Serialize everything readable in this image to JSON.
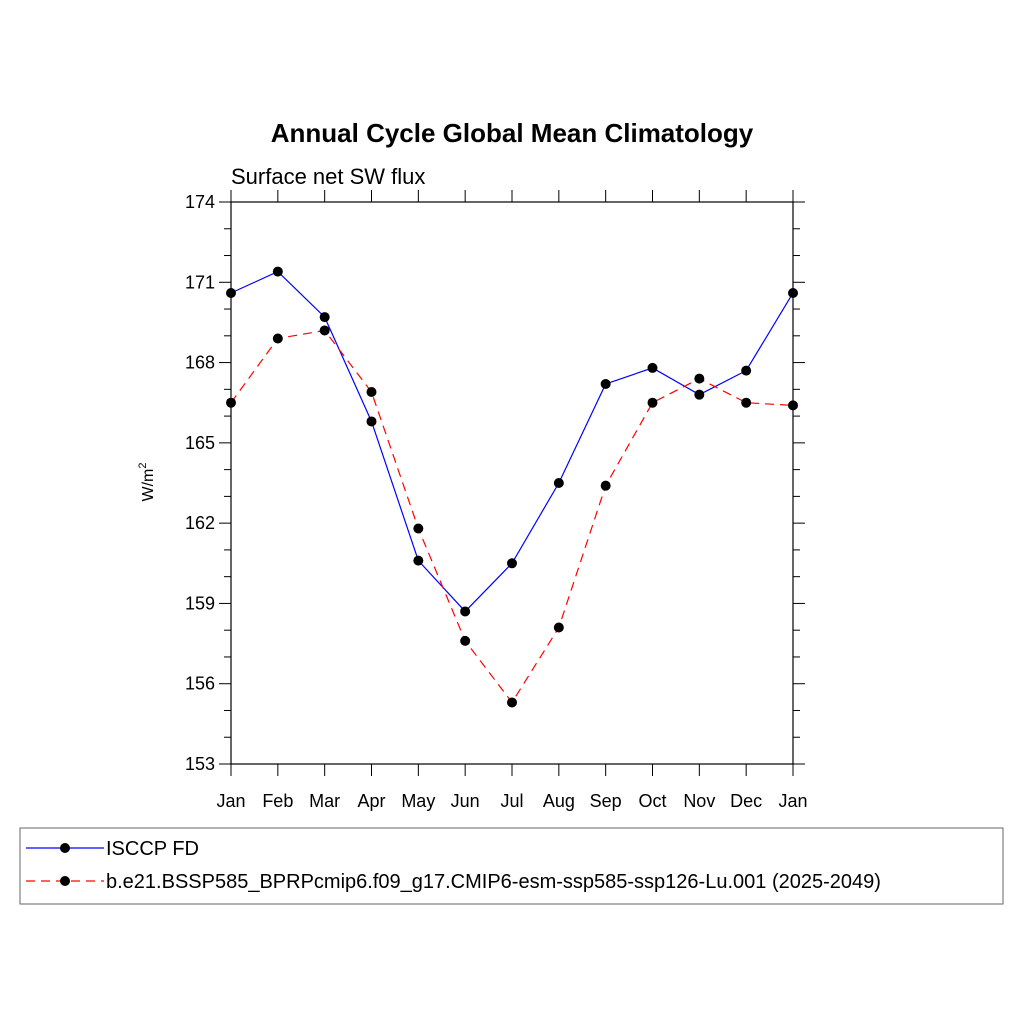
{
  "chart_data": {
    "type": "line",
    "title": "Annual Cycle Global Mean Climatology",
    "subtitle": "Surface net SW flux",
    "ylabel": "W/m",
    "ylabel_sup": "2",
    "xlabel": "",
    "categories": [
      "Jan",
      "Feb",
      "Mar",
      "Apr",
      "May",
      "Jun",
      "Jul",
      "Aug",
      "Sep",
      "Oct",
      "Nov",
      "Dec",
      "Jan"
    ],
    "ylim": [
      153,
      174
    ],
    "yticks": [
      153,
      156,
      159,
      162,
      165,
      168,
      171,
      174
    ],
    "grid": false,
    "legend_position": "bottom",
    "series": [
      {
        "name": "ISCCP FD",
        "color": "#0000ff",
        "dash": "solid",
        "marker": "circle",
        "values": [
          170.6,
          171.4,
          169.7,
          165.8,
          160.6,
          158.7,
          160.5,
          163.5,
          167.2,
          167.8,
          166.8,
          167.7,
          170.6
        ]
      },
      {
        "name": "b.e21.BSSP585_BPRPcmip6.f09_g17.CMIP6-esm-ssp585-ssp126-Lu.001 (2025-2049)",
        "color": "#ff0000",
        "dash": "dashed",
        "marker": "circle",
        "values": [
          166.5,
          168.9,
          169.2,
          166.9,
          161.8,
          157.6,
          155.3,
          158.1,
          163.4,
          166.5,
          167.4,
          166.5,
          166.4
        ]
      }
    ]
  }
}
